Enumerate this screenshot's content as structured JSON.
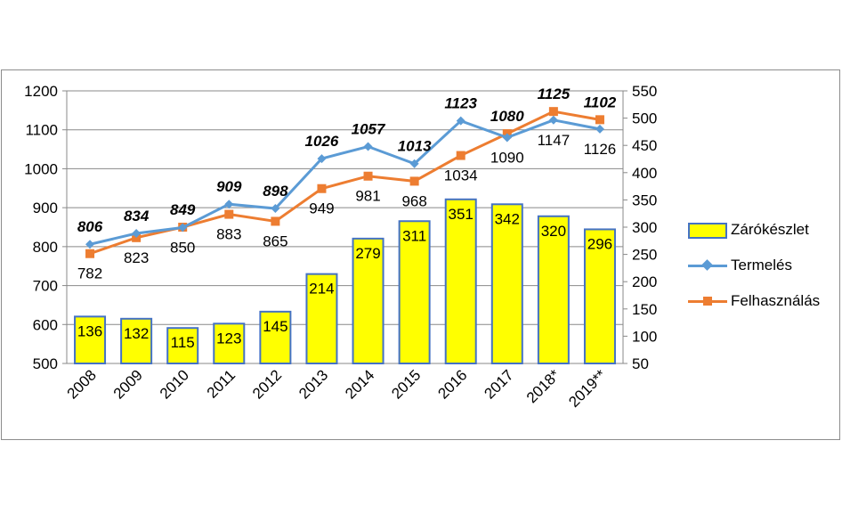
{
  "chart_data": {
    "type": "bar+line",
    "categories": [
      "2008",
      "2009",
      "2010",
      "2011",
      "2012",
      "2013",
      "2014",
      "2015",
      "2016",
      "2017",
      "2018*",
      "2019**"
    ],
    "series": [
      {
        "name": "Zárókészlet",
        "type": "bar",
        "axis": "right",
        "color": "#FFFF00",
        "border": "#4472C4",
        "values": [
          136,
          132,
          115,
          123,
          145,
          214,
          279,
          311,
          351,
          342,
          320,
          296
        ]
      },
      {
        "name": "Termelés",
        "type": "line",
        "axis": "left",
        "color": "#5B9BD5",
        "marker": "diamond",
        "values": [
          806,
          834,
          849,
          909,
          898,
          1026,
          1057,
          1013,
          1123,
          1080,
          1125,
          1102
        ]
      },
      {
        "name": "Felhasználás",
        "type": "line",
        "axis": "left",
        "color": "#ED7D31",
        "marker": "square",
        "values": [
          782,
          823,
          850,
          883,
          865,
          949,
          981,
          968,
          1034,
          1090,
          1147,
          1126
        ]
      }
    ],
    "left_axis": {
      "min": 500,
      "max": 1200,
      "step": 100,
      "ticks": [
        "500",
        "600",
        "700",
        "800",
        "900",
        "1000",
        "1100",
        "1200"
      ]
    },
    "right_axis": {
      "min": 50,
      "max": 550,
      "step": 50,
      "ticks": [
        "50",
        "100",
        "150",
        "200",
        "250",
        "300",
        "350",
        "400",
        "450",
        "500",
        "550"
      ]
    },
    "grid": true,
    "legend": "right"
  }
}
